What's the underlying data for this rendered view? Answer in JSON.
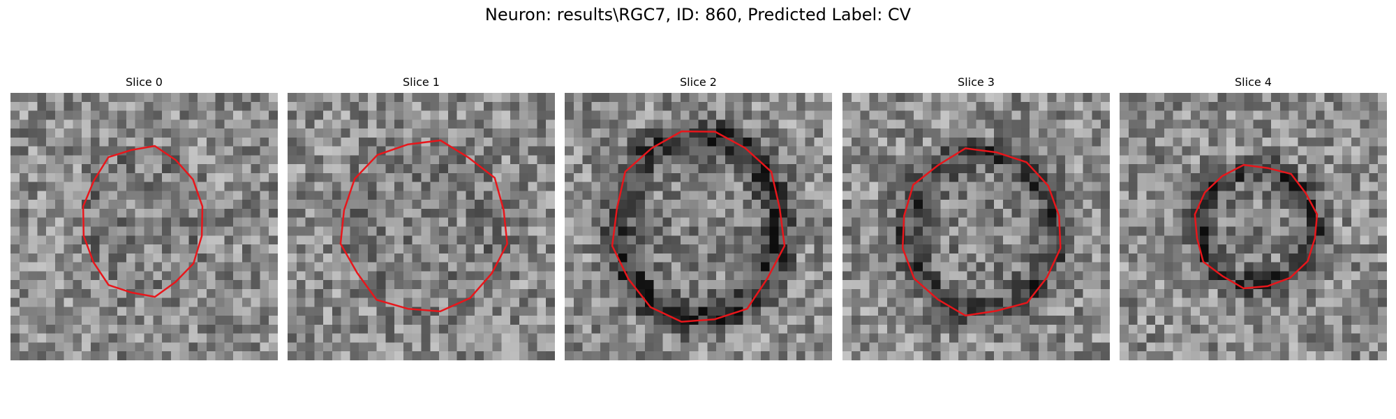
{
  "figure": {
    "title": "Neuron: results\\RGC7, ID: 860, Predicted Label: CV"
  },
  "colors": {
    "contour": "#e8161b",
    "background": "#ffffff"
  },
  "slices": [
    {
      "title": "Slice 0",
      "seed": 11,
      "contour_center": [
        0.495,
        0.48
      ],
      "contour_radius": [
        0.225,
        0.28
      ],
      "ring_darkness": 0.05
    },
    {
      "title": "Slice 1",
      "seed": 23,
      "contour_center": [
        0.51,
        0.5
      ],
      "contour_radius": [
        0.31,
        0.32
      ],
      "ring_darkness": 0.05
    },
    {
      "title": "Slice 2",
      "seed": 37,
      "contour_center": [
        0.5,
        0.5
      ],
      "contour_radius": [
        0.32,
        0.36
      ],
      "ring_darkness": 0.35
    },
    {
      "title": "Slice 3",
      "seed": 41,
      "contour_center": [
        0.52,
        0.52
      ],
      "contour_radius": [
        0.3,
        0.31
      ],
      "ring_darkness": 0.3
    },
    {
      "title": "Slice 4",
      "seed": 53,
      "contour_center": [
        0.51,
        0.5
      ],
      "contour_radius": [
        0.23,
        0.23
      ],
      "ring_darkness": 0.35
    }
  ]
}
